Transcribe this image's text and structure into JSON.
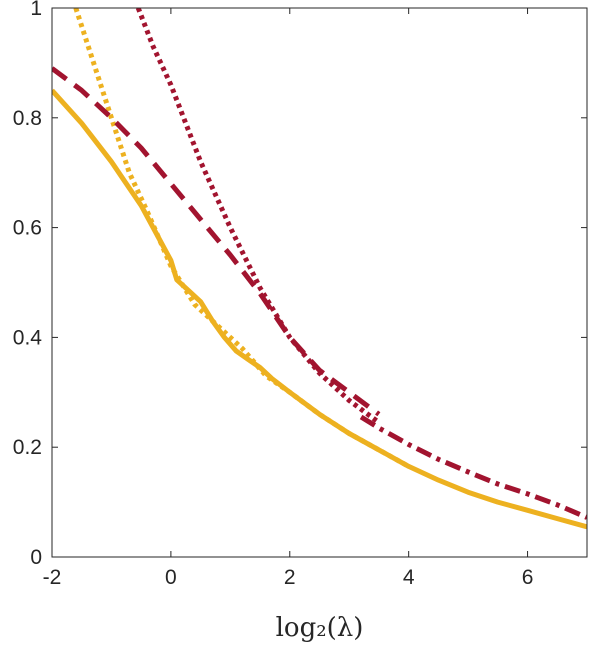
{
  "chart_data": {
    "type": "line",
    "title": "",
    "xlabel": "log₂(λ)",
    "ylabel": "",
    "xlim": [
      -2,
      7
    ],
    "ylim": [
      0,
      1
    ],
    "xticks": [
      -2,
      0,
      2,
      4,
      6
    ],
    "yticks": [
      0,
      0.2,
      0.4,
      0.6,
      0.8,
      1
    ],
    "xtick_labels": [
      "-2",
      "0",
      "2",
      "4",
      "6"
    ],
    "ytick_labels": [
      "0",
      "0.2",
      "0.4",
      "0.6",
      "0.8",
      "1"
    ],
    "grid": false,
    "legend": "none",
    "series": [
      {
        "color": "#edb120",
        "line_style": "solid",
        "x": [
          -2,
          -1.5,
          -1,
          -0.5,
          0,
          0.1,
          0.3,
          0.5,
          0.7,
          0.9,
          1.1,
          1.3,
          1.5,
          1.7,
          2,
          2.5,
          3,
          3.5,
          4,
          4.5,
          5,
          5.5,
          6,
          6.5,
          7
        ],
        "y": [
          0.85,
          0.79,
          0.72,
          0.64,
          0.54,
          0.505,
          0.485,
          0.465,
          0.43,
          0.4,
          0.375,
          0.36,
          0.345,
          0.325,
          0.3,
          0.26,
          0.225,
          0.195,
          0.165,
          0.14,
          0.118,
          0.1,
          0.085,
          0.07,
          0.055
        ]
      },
      {
        "color": "#edb120",
        "line_style": "dotted",
        "x": [
          -1.6,
          -1.3,
          -1,
          -0.7,
          -0.4,
          0,
          0.4,
          0.8,
          1.2,
          1.6,
          2,
          2.5,
          3,
          3.5,
          4
        ],
        "y": [
          1.0,
          0.9,
          0.8,
          0.7,
          0.63,
          0.53,
          0.46,
          0.42,
          0.38,
          0.33,
          0.3,
          0.26,
          0.225,
          0.195,
          0.165
        ]
      },
      {
        "color": "#a2142f",
        "line_style": "dashed",
        "x": [
          -2,
          -1.5,
          -1,
          -0.5,
          0,
          0.5,
          1,
          1.5,
          2,
          2.5,
          3,
          3.5
        ],
        "y": [
          0.89,
          0.85,
          0.8,
          0.745,
          0.68,
          0.615,
          0.55,
          0.48,
          0.4,
          0.34,
          0.3,
          0.26
        ]
      },
      {
        "color": "#a2142f",
        "line_style": "dotted",
        "x": [
          -0.55,
          -0.3,
          0,
          0.5,
          1,
          1.5,
          2,
          2.5,
          3,
          3.5
        ],
        "y": [
          1.0,
          0.93,
          0.86,
          0.72,
          0.6,
          0.49,
          0.4,
          0.335,
          0.285,
          0.245
        ]
      },
      {
        "color": "#a2142f",
        "line_style": "dashdot",
        "x": [
          3.2,
          3.5,
          4,
          4.5,
          5,
          5.5,
          6,
          6.5,
          7
        ],
        "y": [
          0.255,
          0.235,
          0.205,
          0.178,
          0.155,
          0.133,
          0.115,
          0.095,
          0.072
        ]
      }
    ]
  }
}
